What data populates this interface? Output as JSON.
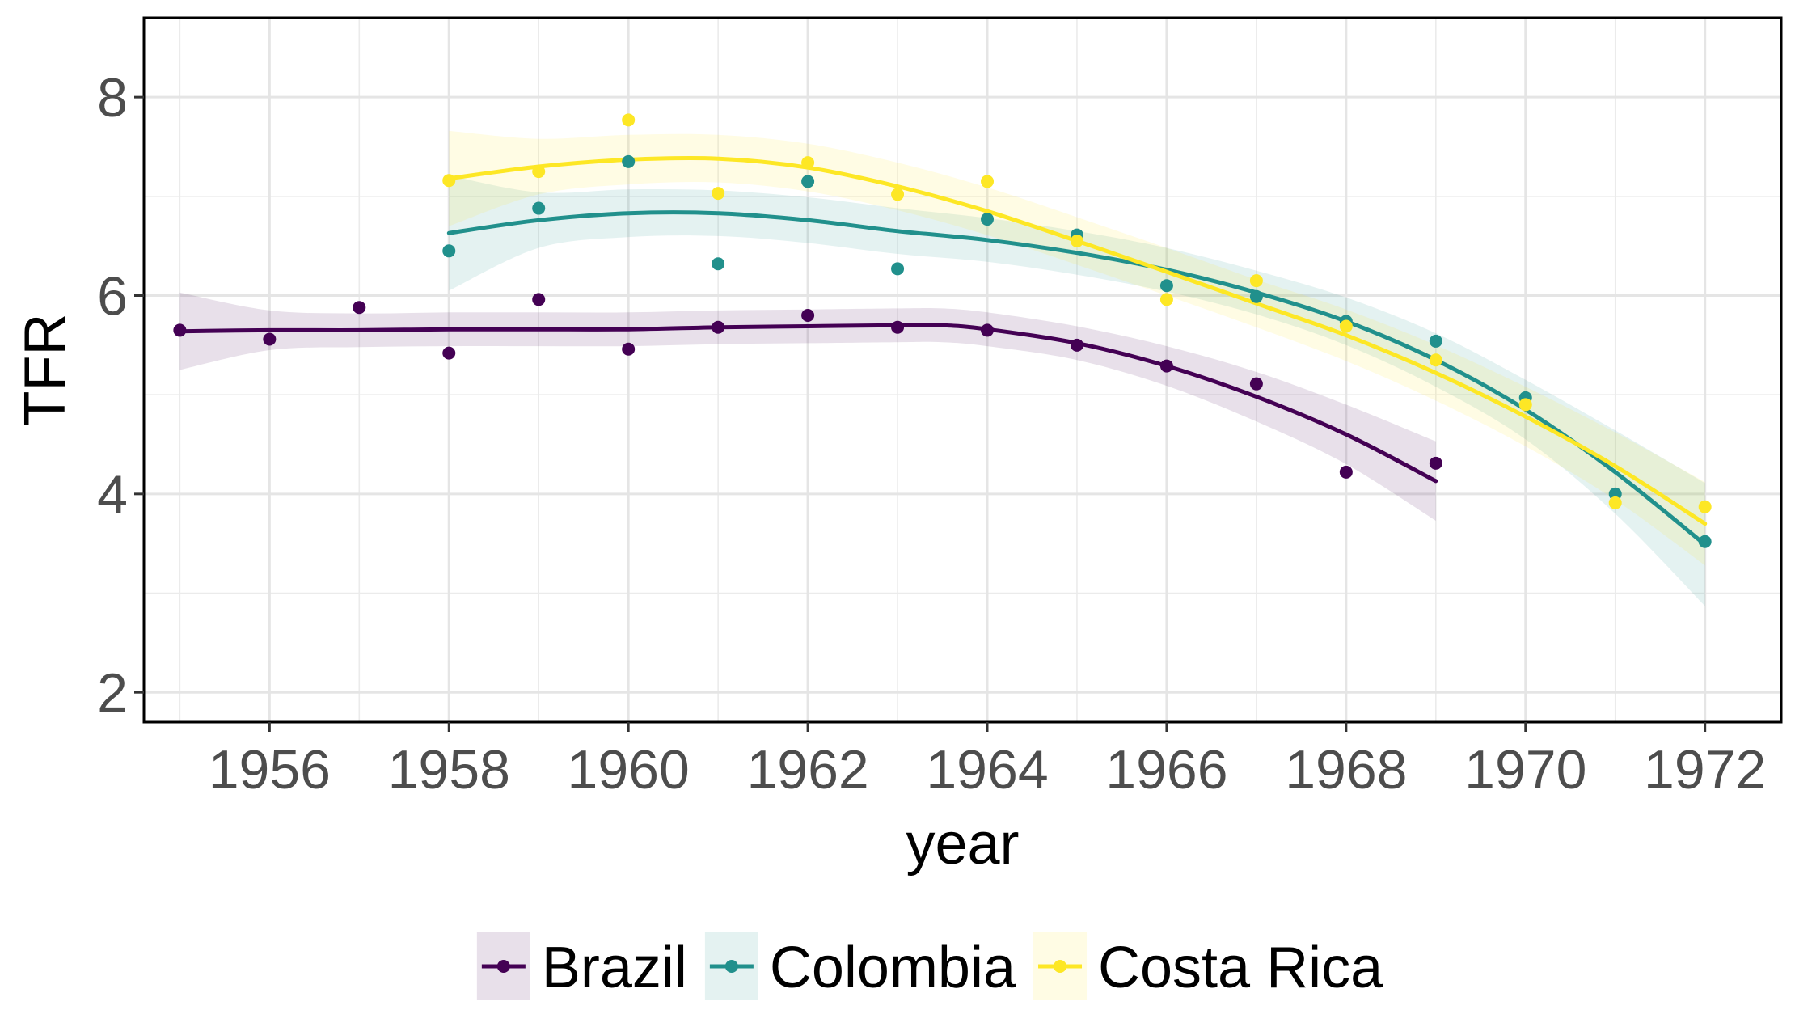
{
  "chart_data": {
    "type": "line",
    "title": "",
    "xlabel": "year",
    "ylabel": "TFR",
    "xlim": [
      1954.6,
      1972.85
    ],
    "ylim": [
      1.7,
      8.8
    ],
    "x_ticks": [
      1956,
      1958,
      1960,
      1962,
      1964,
      1966,
      1968,
      1970,
      1972
    ],
    "y_ticks": [
      2,
      4,
      6,
      8
    ],
    "grid": true,
    "legend_position": "bottom",
    "series": [
      {
        "name": "Brazil",
        "color": "#440154",
        "points": [
          [
            1955,
            5.65
          ],
          [
            1956,
            5.56
          ],
          [
            1957,
            5.88
          ],
          [
            1958,
            5.42
          ],
          [
            1959,
            5.96
          ],
          [
            1960,
            5.46
          ],
          [
            1961,
            5.68
          ],
          [
            1962,
            5.8
          ],
          [
            1963,
            5.68
          ],
          [
            1964,
            5.65
          ],
          [
            1965,
            5.5
          ],
          [
            1966,
            5.29
          ],
          [
            1967,
            5.11
          ],
          [
            1968,
            4.22
          ],
          [
            1969,
            4.31
          ]
        ],
        "smooth": [
          [
            1955,
            5.64
          ],
          [
            1956,
            5.65
          ],
          [
            1957,
            5.65
          ],
          [
            1958,
            5.66
          ],
          [
            1959,
            5.66
          ],
          [
            1960,
            5.66
          ],
          [
            1961,
            5.68
          ],
          [
            1962,
            5.69
          ],
          [
            1963,
            5.7
          ],
          [
            1963.5,
            5.7
          ],
          [
            1964,
            5.66
          ],
          [
            1965,
            5.52
          ],
          [
            1966,
            5.29
          ],
          [
            1967,
            4.98
          ],
          [
            1968,
            4.6
          ],
          [
            1969,
            4.13
          ]
        ],
        "band_width": [
          0.39,
          0.2,
          0.17,
          0.17,
          0.17,
          0.17,
          0.17,
          0.17,
          0.17,
          0.17,
          0.17,
          0.17,
          0.2,
          0.25,
          0.3,
          0.4
        ]
      },
      {
        "name": "Colombia",
        "color": "#21908c",
        "points": [
          [
            1958,
            6.45
          ],
          [
            1959,
            6.88
          ],
          [
            1960,
            7.35
          ],
          [
            1961,
            6.32
          ],
          [
            1962,
            7.15
          ],
          [
            1963,
            6.27
          ],
          [
            1964,
            6.77
          ],
          [
            1965,
            6.61
          ],
          [
            1966,
            6.1
          ],
          [
            1967,
            5.99
          ],
          [
            1968,
            5.74
          ],
          [
            1969,
            5.54
          ],
          [
            1970,
            4.97
          ],
          [
            1971,
            4.0
          ],
          [
            1972,
            3.52
          ]
        ],
        "smooth": [
          [
            1958,
            6.63
          ],
          [
            1959,
            6.76
          ],
          [
            1960,
            6.83
          ],
          [
            1961,
            6.83
          ],
          [
            1962,
            6.76
          ],
          [
            1963,
            6.65
          ],
          [
            1964,
            6.56
          ],
          [
            1965,
            6.43
          ],
          [
            1966,
            6.26
          ],
          [
            1967,
            6.03
          ],
          [
            1968,
            5.74
          ],
          [
            1969,
            5.35
          ],
          [
            1970,
            4.85
          ],
          [
            1971,
            4.22
          ],
          [
            1972,
            3.49
          ]
        ],
        "band_width": [
          0.58,
          0.28,
          0.24,
          0.23,
          0.23,
          0.23,
          0.22,
          0.22,
          0.22,
          0.22,
          0.24,
          0.27,
          0.3,
          0.42,
          0.62
        ]
      },
      {
        "name": "Costa Rica",
        "color": "#fde725",
        "points": [
          [
            1958,
            7.16
          ],
          [
            1959,
            7.25
          ],
          [
            1960,
            7.77
          ],
          [
            1961,
            7.03
          ],
          [
            1962,
            7.34
          ],
          [
            1963,
            7.02
          ],
          [
            1964,
            7.15
          ],
          [
            1965,
            6.55
          ],
          [
            1966,
            5.96
          ],
          [
            1967,
            6.15
          ],
          [
            1968,
            5.69
          ],
          [
            1969,
            5.35
          ],
          [
            1970,
            4.9
          ],
          [
            1971,
            3.91
          ],
          [
            1972,
            3.87
          ]
        ],
        "smooth": [
          [
            1958,
            7.18
          ],
          [
            1959,
            7.3
          ],
          [
            1960,
            7.37
          ],
          [
            1961,
            7.38
          ],
          [
            1962,
            7.29
          ],
          [
            1963,
            7.1
          ],
          [
            1964,
            6.85
          ],
          [
            1965,
            6.55
          ],
          [
            1966,
            6.24
          ],
          [
            1967,
            5.92
          ],
          [
            1968,
            5.6
          ],
          [
            1969,
            5.22
          ],
          [
            1970,
            4.78
          ],
          [
            1971,
            4.28
          ],
          [
            1972,
            3.7
          ]
        ],
        "band_width": [
          0.48,
          0.28,
          0.25,
          0.24,
          0.24,
          0.24,
          0.24,
          0.24,
          0.24,
          0.24,
          0.26,
          0.28,
          0.3,
          0.34,
          0.42
        ]
      }
    ]
  }
}
